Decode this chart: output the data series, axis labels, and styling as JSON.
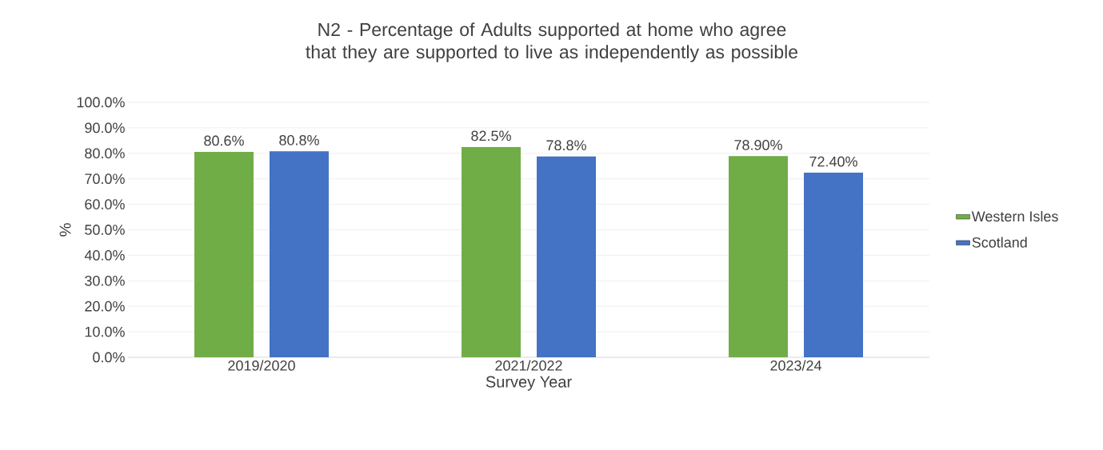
{
  "chart_data": {
    "type": "bar",
    "title": "N2 - Percentage of Adults supported at home  who agree that they are supported to live as independently as possible",
    "xlabel": "Survey Year",
    "ylabel": "%",
    "categories": [
      "2019/2020",
      "2021/2022",
      "2023/24"
    ],
    "series": [
      {
        "name": "Western Isles",
        "color": "#70ad47",
        "values": [
          80.6,
          82.5,
          78.9
        ],
        "value_labels": [
          "80.6%",
          "82.5%",
          "78.90%"
        ]
      },
      {
        "name": "Scotland",
        "color": "#4472c4",
        "values": [
          80.8,
          78.8,
          72.4
        ],
        "value_labels": [
          "80.8%",
          "78.8%",
          "72.40%"
        ]
      }
    ],
    "ylim": [
      0,
      100
    ],
    "yticks": [
      {
        "value": 0,
        "label": "0.0%"
      },
      {
        "value": 10,
        "label": "10.0%"
      },
      {
        "value": 20,
        "label": "20.0%"
      },
      {
        "value": 30,
        "label": "30.0%"
      },
      {
        "value": 40,
        "label": "40.0%"
      },
      {
        "value": 50,
        "label": "50.0%"
      },
      {
        "value": 60,
        "label": "60.0%"
      },
      {
        "value": 70,
        "label": "70.0%"
      },
      {
        "value": 80,
        "label": "80.0%"
      },
      {
        "value": 90,
        "label": "90.0%"
      },
      {
        "value": 100,
        "label": "100.0%"
      }
    ],
    "grid": "y",
    "legend": "right"
  }
}
